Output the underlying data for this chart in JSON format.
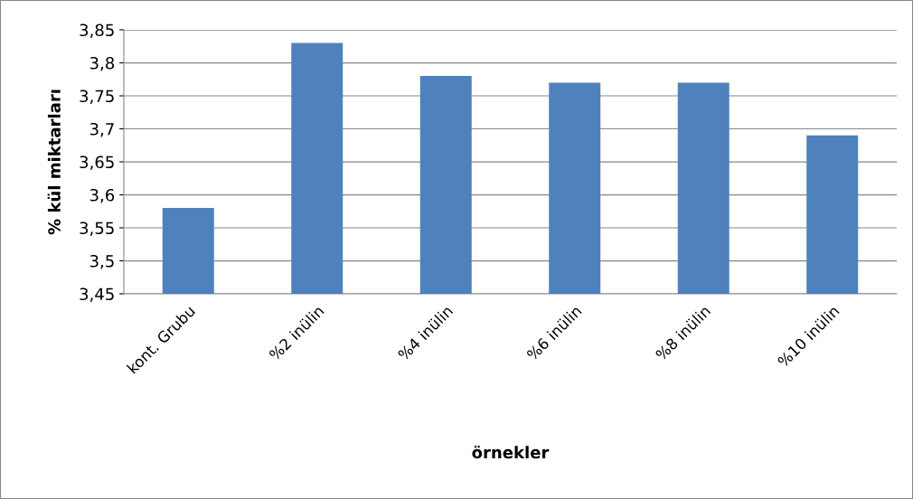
{
  "chart_data": {
    "type": "bar",
    "xlabel": "örnekler",
    "ylabel": "% kül miktarları",
    "categories": [
      "kont. Grubu",
      "%2 inülin",
      "%4 inülin",
      "%6 inülin",
      "%8 inülin",
      "%10 inülin"
    ],
    "values": [
      3.58,
      3.83,
      3.78,
      3.77,
      3.77,
      3.69
    ],
    "color": "#4f81bd",
    "ylim": [
      3.45,
      3.85
    ],
    "yticks": [
      {
        "value": 3.45,
        "label": "3,45"
      },
      {
        "value": 3.5,
        "label": "3,5"
      },
      {
        "value": 3.55,
        "label": "3,55"
      },
      {
        "value": 3.6,
        "label": "3,6"
      },
      {
        "value": 3.65,
        "label": "3,65"
      },
      {
        "value": 3.7,
        "label": "3,7"
      },
      {
        "value": 3.75,
        "label": "3,75"
      },
      {
        "value": 3.8,
        "label": "3,8"
      },
      {
        "value": 3.85,
        "label": "3,85"
      }
    ],
    "grid": "y"
  }
}
